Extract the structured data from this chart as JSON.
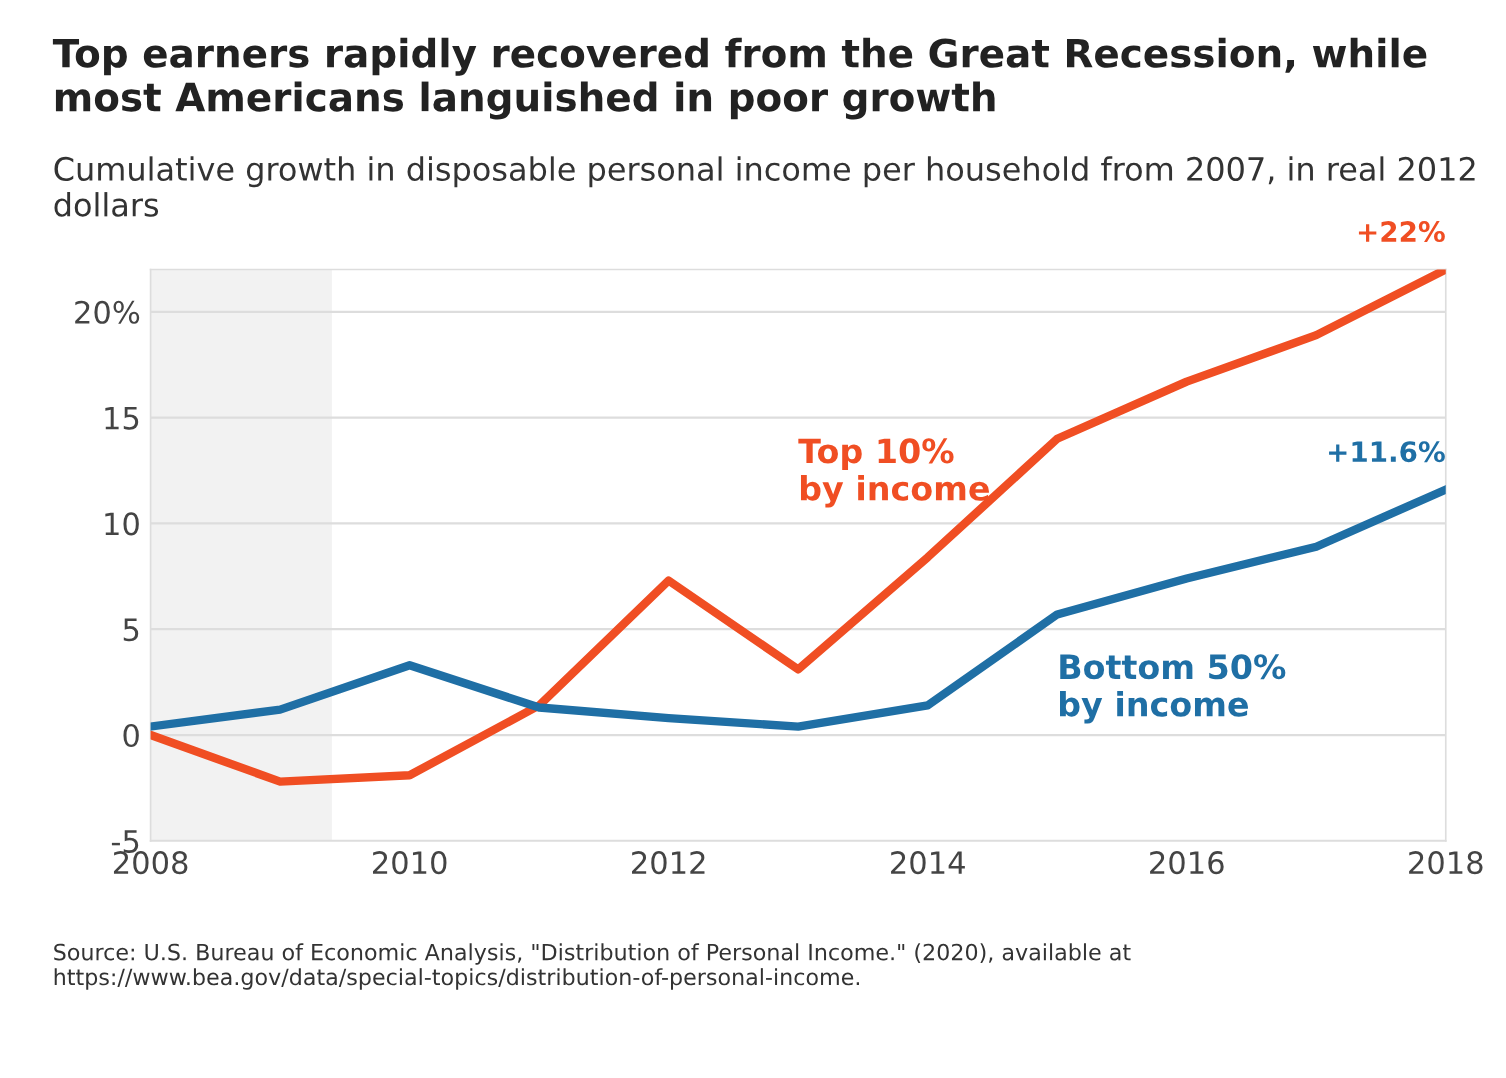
{
  "chart_data": {
    "type": "line",
    "title": "Top earners rapidly recovered from the Great Recession, while most Americans languished in poor growth",
    "subtitle": "Cumulative growth in disposable personal income per household from 2007, in real 2012 dollars",
    "x": [
      2008,
      2009,
      2010,
      2011,
      2012,
      2013,
      2014,
      2015,
      2016,
      2017,
      2018
    ],
    "series": [
      {
        "name": "Top 10%\nby income",
        "color": "#f04e23",
        "values": [
          0,
          -2.2,
          -1.9,
          1.4,
          7.3,
          3.1,
          8.4,
          14.0,
          16.7,
          18.9,
          22
        ],
        "value_labels": [
          null,
          null,
          null,
          null,
          null,
          null,
          null,
          null,
          null,
          null,
          "+22%"
        ]
      },
      {
        "name": "Bottom 50%\nby income",
        "color": "#1f6fa5",
        "values": [
          0.4,
          1.2,
          3.3,
          1.3,
          0.8,
          0.4,
          1.4,
          5.7,
          7.4,
          8.9,
          11.6
        ],
        "value_labels": [
          null,
          null,
          null,
          null,
          null,
          null,
          null,
          null,
          null,
          null,
          "+11.6%"
        ]
      }
    ],
    "xlim": [
      2008,
      2018
    ],
    "xticks": [
      2008,
      2010,
      2012,
      2014,
      2016,
      2018
    ],
    "ylim": [
      -5,
      22
    ],
    "yticks": [
      -5,
      0,
      5,
      10,
      15,
      {
        "value": 20,
        "label": "20%"
      }
    ],
    "bands": [
      {
        "axis": "x",
        "from": 2008,
        "to": 2009.4,
        "color": "#f2f2f2"
      }
    ],
    "grid": "y",
    "legend": false,
    "marker": "none",
    "line_style": "solid",
    "annotations": [
      "Source: U.S. Bureau of Economic Analysis, \"Distribution of Personal Income.\" (2020), available at https://www.bea.gov/data/special-topics/distribution-of-personal-income."
    ]
  }
}
